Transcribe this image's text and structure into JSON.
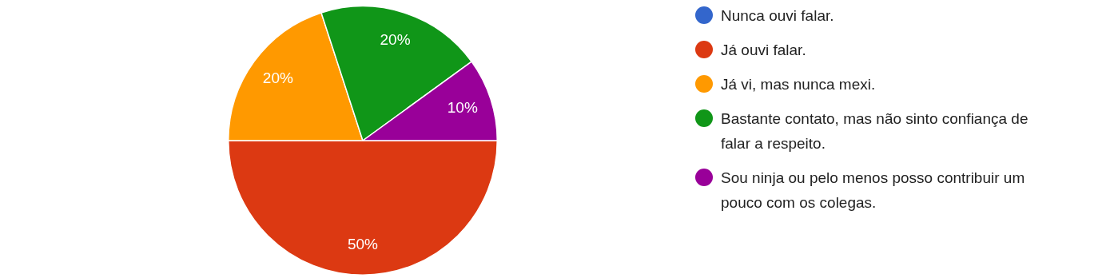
{
  "chart_data": {
    "type": "pie",
    "categories": [
      "Nunca ouvi falar.",
      "Já ouvi falar.",
      "Já vi, mas nunca mexi.",
      "Bastante contato, mas não sinto confiança de falar a respeito.",
      "Sou ninja ou pelo menos posso contribuir um pouco com os colegas."
    ],
    "values": [
      0,
      50,
      20,
      20,
      10
    ],
    "colors": [
      "#3366cc",
      "#dc3912",
      "#ff9900",
      "#109618",
      "#990099"
    ],
    "value_labels": [
      null,
      "50%",
      "20%",
      "20%",
      "10%"
    ],
    "legend": "right"
  }
}
